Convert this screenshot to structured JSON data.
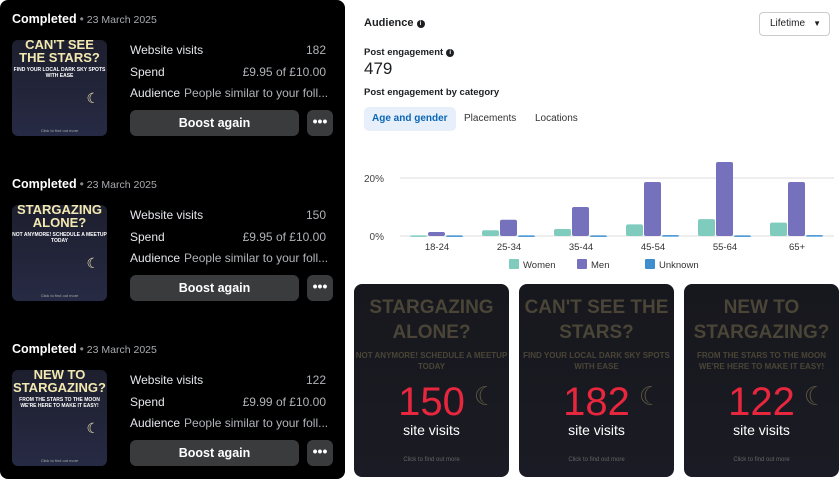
{
  "campaigns": [
    {
      "status": "Completed",
      "date": "23 March 2025",
      "image": {
        "headline": "CAN'T SEE THE STARS?",
        "sub": "FIND YOUR LOCAL DARK SKY SPOTS WITH EASE",
        "cta": "Click to find out more"
      },
      "visits_label": "Website visits",
      "visits": "182",
      "spend_label": "Spend",
      "spend": "£9.95 of £10.00",
      "audience_label": "Audience",
      "audience": "People similar to your foll...",
      "boost": "Boost again",
      "more": "•••"
    },
    {
      "status": "Completed",
      "date": "23 March 2025",
      "image": {
        "headline": "STARGAZING ALONE?",
        "sub": "NOT ANYMORE! SCHEDULE A MEETUP TODAY",
        "cta": "Click to find out more"
      },
      "visits_label": "Website visits",
      "visits": "150",
      "spend_label": "Spend",
      "spend": "£9.95 of £10.00",
      "audience_label": "Audience",
      "audience": "People similar to your foll...",
      "boost": "Boost again",
      "more": "•••"
    },
    {
      "status": "Completed",
      "date": "23 March 2025",
      "image": {
        "headline": "NEW TO STARGAZING?",
        "sub": "FROM THE STARS TO THE MOON WE'RE HERE TO MAKE IT EASY!",
        "cta": "Click to find out more"
      },
      "visits_label": "Website visits",
      "visits": "122",
      "spend_label": "Spend",
      "spend": "£9.99 of £10.00",
      "audience_label": "Audience",
      "audience": "People similar to your foll...",
      "boost": "Boost again",
      "more": "•••"
    }
  ],
  "audience": {
    "title": "Audience",
    "period": "Lifetime",
    "engagement_label": "Post engagement",
    "engagement": "479",
    "by_category": "Post engagement by category",
    "tabs": [
      "Age and gender",
      "Placements",
      "Locations"
    ],
    "active_tab": "Age and gender"
  },
  "chart_data": {
    "type": "bar",
    "categories": [
      "18-24",
      "25-34",
      "35-44",
      "45-54",
      "55-64",
      "65+"
    ],
    "yticks": [
      "0%",
      "20%"
    ],
    "ylim": [
      0,
      26
    ],
    "grid": true,
    "legend": "bottom",
    "series": [
      {
        "name": "Women",
        "color": "#7fcbbd",
        "values": [
          0.2,
          2.0,
          2.4,
          4.0,
          5.8,
          4.6
        ]
      },
      {
        "name": "Men",
        "color": "#7571bd",
        "values": [
          1.4,
          5.6,
          10.0,
          18.6,
          25.5,
          18.6
        ]
      },
      {
        "name": "Unknown",
        "color": "#3d8fd0",
        "values": [
          0.2,
          0.2,
          0.2,
          0.3,
          0.2,
          0.3
        ]
      }
    ]
  },
  "promos": [
    {
      "headline": "STARGAZING ALONE?",
      "sub": "NOT ANYMORE! SCHEDULE A MEETUP TODAY",
      "number": "150",
      "unit": "site visits",
      "cta": "Click to find out more"
    },
    {
      "headline": "CAN'T SEE THE STARS?",
      "sub": "FIND YOUR LOCAL DARK SKY SPOTS WITH EASE",
      "number": "182",
      "unit": "site visits",
      "cta": "Click to find out more"
    },
    {
      "headline": "NEW TO STARGAZING?",
      "sub": "FROM THE STARS TO THE MOON WE'RE HERE TO MAKE IT EASY!",
      "number": "122",
      "unit": "site visits",
      "cta": "Click to find out more"
    }
  ]
}
